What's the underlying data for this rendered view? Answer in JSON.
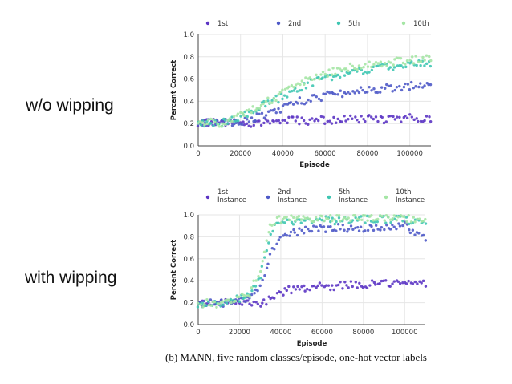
{
  "side_labels": {
    "top": "w/o wipping",
    "bottom": "with wipping"
  },
  "caption": "(b) MANN, five random classes/episode, one-hot vector labels",
  "colors": {
    "series_1": "#5c35c4",
    "series_2": "#4f5ac8",
    "series_5": "#3fc6b2",
    "series_10": "#a5e6a5",
    "grid": "#e6e6e6",
    "axis": "#444444"
  },
  "chart_data": [
    {
      "type": "scatter",
      "title": "",
      "xlabel": "Episode",
      "ylabel": "Percent Correct",
      "xlim": [
        0,
        110000
      ],
      "ylim": [
        0.0,
        1.0
      ],
      "xticks": [
        "0",
        "20000",
        "40000",
        "60000",
        "80000",
        "100000"
      ],
      "yticks": [
        "0.0",
        "0.2",
        "0.4",
        "0.6",
        "0.8",
        "1.0"
      ],
      "grid": true,
      "legend": [
        "1st",
        "2nd",
        "5th",
        "10th"
      ],
      "x_points": [
        0,
        5000,
        10000,
        15000,
        20000,
        25000,
        30000,
        35000,
        40000,
        45000,
        50000,
        55000,
        60000,
        65000,
        70000,
        75000,
        80000,
        85000,
        90000,
        95000,
        100000,
        105000,
        110000
      ],
      "series": [
        {
          "name": "1st",
          "values": [
            0.2,
            0.21,
            0.2,
            0.2,
            0.22,
            0.2,
            0.21,
            0.22,
            0.22,
            0.23,
            0.22,
            0.23,
            0.23,
            0.23,
            0.24,
            0.24,
            0.24,
            0.24,
            0.24,
            0.24,
            0.25,
            0.25,
            0.25
          ]
        },
        {
          "name": "2nd",
          "values": [
            0.2,
            0.21,
            0.2,
            0.21,
            0.22,
            0.24,
            0.27,
            0.3,
            0.34,
            0.38,
            0.41,
            0.43,
            0.45,
            0.46,
            0.48,
            0.49,
            0.5,
            0.51,
            0.52,
            0.53,
            0.54,
            0.55,
            0.56
          ]
        },
        {
          "name": "5th",
          "values": [
            0.2,
            0.21,
            0.2,
            0.22,
            0.25,
            0.31,
            0.36,
            0.4,
            0.44,
            0.49,
            0.54,
            0.58,
            0.61,
            0.63,
            0.65,
            0.67,
            0.68,
            0.7,
            0.71,
            0.72,
            0.73,
            0.74,
            0.74
          ]
        },
        {
          "name": "10th",
          "values": [
            0.2,
            0.21,
            0.2,
            0.23,
            0.27,
            0.33,
            0.38,
            0.42,
            0.47,
            0.52,
            0.57,
            0.61,
            0.65,
            0.68,
            0.7,
            0.72,
            0.73,
            0.74,
            0.75,
            0.76,
            0.77,
            0.78,
            0.79
          ]
        }
      ]
    },
    {
      "type": "scatter",
      "title": "",
      "xlabel": "Episode",
      "ylabel": "Percent Correct",
      "xlim": [
        0,
        110000
      ],
      "ylim": [
        0.0,
        1.0
      ],
      "xticks": [
        "0",
        "20000",
        "40000",
        "60000",
        "80000",
        "100000"
      ],
      "yticks": [
        "0.0",
        "0.2",
        "0.4",
        "0.6",
        "0.8",
        "1.0"
      ],
      "grid": true,
      "legend": [
        "1st Instance",
        "2nd Instance",
        "5th Instance",
        "10th Instance"
      ],
      "x_points": [
        0,
        5000,
        10000,
        15000,
        20000,
        25000,
        30000,
        35000,
        40000,
        45000,
        50000,
        55000,
        60000,
        65000,
        70000,
        75000,
        80000,
        85000,
        90000,
        95000,
        100000,
        105000,
        110000
      ],
      "series": [
        {
          "name": "1st Instance",
          "values": [
            0.19,
            0.2,
            0.19,
            0.2,
            0.21,
            0.21,
            0.19,
            0.23,
            0.29,
            0.32,
            0.33,
            0.34,
            0.35,
            0.35,
            0.36,
            0.36,
            0.36,
            0.37,
            0.37,
            0.37,
            0.37,
            0.38,
            0.38
          ]
        },
        {
          "name": "2nd Instance",
          "values": [
            0.19,
            0.2,
            0.19,
            0.2,
            0.22,
            0.24,
            0.33,
            0.65,
            0.78,
            0.83,
            0.85,
            0.87,
            0.87,
            0.88,
            0.88,
            0.88,
            0.88,
            0.89,
            0.89,
            0.89,
            0.9,
            0.82,
            0.8
          ]
        },
        {
          "name": "5th Instance",
          "values": [
            0.19,
            0.2,
            0.19,
            0.21,
            0.24,
            0.27,
            0.42,
            0.85,
            0.93,
            0.94,
            0.95,
            0.95,
            0.95,
            0.95,
            0.95,
            0.96,
            0.96,
            0.96,
            0.96,
            0.96,
            0.95,
            0.95,
            0.95
          ]
        },
        {
          "name": "10th Instance",
          "values": [
            0.19,
            0.2,
            0.19,
            0.21,
            0.24,
            0.28,
            0.5,
            0.92,
            0.96,
            0.97,
            0.97,
            0.97,
            0.97,
            0.97,
            0.97,
            0.98,
            0.98,
            0.98,
            0.98,
            0.98,
            0.97,
            0.97,
            0.97
          ]
        }
      ]
    }
  ]
}
